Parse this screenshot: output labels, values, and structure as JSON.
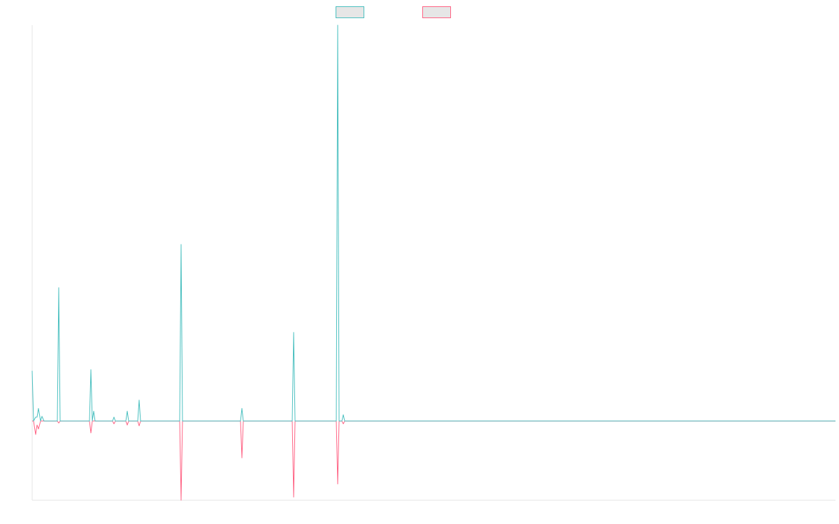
{
  "chart_data": {
    "type": "line",
    "x": [
      0,
      2,
      5,
      7,
      9,
      12,
      14,
      17,
      36,
      38,
      40,
      82,
      84,
      86,
      88,
      90,
      115,
      117,
      119,
      134,
      136,
      138,
      151,
      153,
      155,
      211,
      213,
      215,
      298,
      300,
      302,
      372,
      374,
      376,
      435,
      437,
      439,
      443,
      445,
      447,
      1149
    ],
    "series": [
      {
        "color": "#4bc0c0",
        "values": [
          12.7,
          0,
          1,
          1,
          3.2,
          0,
          1.2,
          0,
          0,
          33.7,
          0,
          0,
          13,
          0,
          2.5,
          0,
          0,
          1,
          0,
          0,
          2.5,
          0,
          0,
          5.3,
          0,
          0,
          44.6,
          0,
          0,
          3.2,
          0,
          0,
          22.4,
          0,
          0,
          100,
          0,
          0,
          1.6,
          0,
          0
        ]
      },
      {
        "color": "#ff6384",
        "values": [
          0,
          0,
          -3.4,
          -1,
          -2,
          0,
          0,
          0,
          0,
          -0.5,
          0,
          0,
          -3,
          0,
          0,
          0,
          0,
          -0.7,
          0,
          0,
          -1,
          0,
          0,
          -1.2,
          0,
          0,
          -20,
          0,
          0,
          -9.3,
          0,
          0,
          -19.2,
          0,
          0,
          -15.9,
          0,
          0,
          -0.7,
          0,
          0
        ]
      }
    ],
    "xlim": [
      0,
      1149
    ],
    "ylim": [
      -20,
      100
    ]
  }
}
